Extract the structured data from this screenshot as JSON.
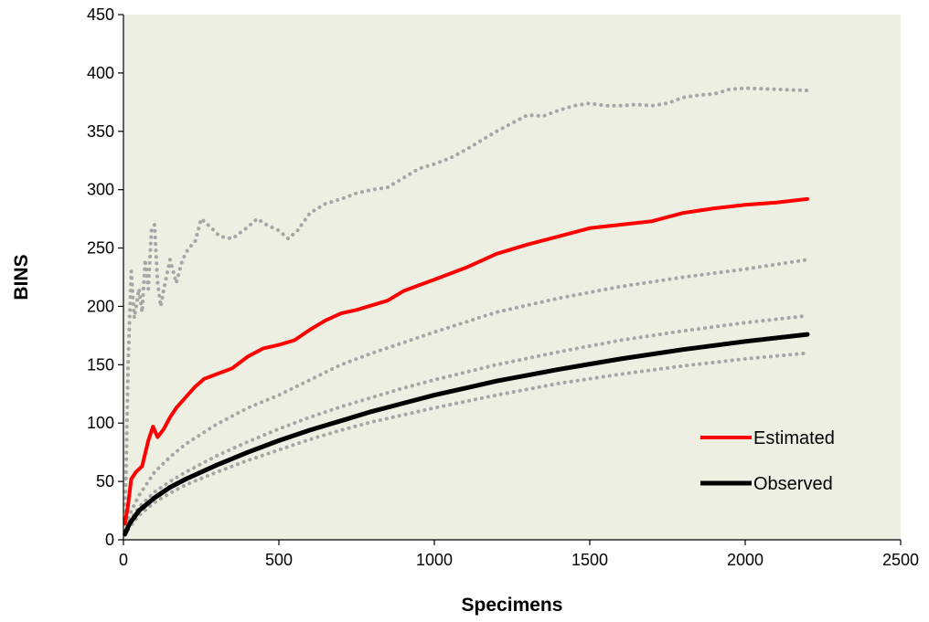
{
  "chart_data": {
    "type": "line",
    "title": "",
    "xlabel": "Specimens",
    "ylabel": "BINS",
    "xlim": [
      0,
      2500
    ],
    "ylim": [
      0,
      450
    ],
    "x_ticks": [
      0,
      500,
      1000,
      1500,
      2000,
      2500
    ],
    "y_ticks": [
      0,
      50,
      100,
      150,
      200,
      250,
      300,
      350,
      400,
      450
    ],
    "grid": false,
    "plot_background": "#ecefe2",
    "legend": {
      "placement": "bottom-right",
      "entries": [
        "Estimated",
        "Observed"
      ]
    },
    "series": [
      {
        "name": "Estimated",
        "style": "solid",
        "color": "#ff0000",
        "in_legend": true,
        "points": [
          [
            5,
            14
          ],
          [
            15,
            30
          ],
          [
            25,
            52
          ],
          [
            40,
            58
          ],
          [
            60,
            63
          ],
          [
            80,
            85
          ],
          [
            95,
            97
          ],
          [
            110,
            88
          ],
          [
            130,
            95
          ],
          [
            150,
            105
          ],
          [
            170,
            113
          ],
          [
            200,
            122
          ],
          [
            230,
            131
          ],
          [
            260,
            138
          ],
          [
            300,
            142
          ],
          [
            350,
            147
          ],
          [
            400,
            157
          ],
          [
            450,
            164
          ],
          [
            500,
            167
          ],
          [
            550,
            171
          ],
          [
            600,
            180
          ],
          [
            650,
            188
          ],
          [
            700,
            194
          ],
          [
            750,
            197
          ],
          [
            800,
            201
          ],
          [
            850,
            205
          ],
          [
            900,
            213
          ],
          [
            950,
            218
          ],
          [
            1000,
            223
          ],
          [
            1100,
            233
          ],
          [
            1200,
            245
          ],
          [
            1300,
            253
          ],
          [
            1400,
            260
          ],
          [
            1500,
            267
          ],
          [
            1600,
            270
          ],
          [
            1700,
            273
          ],
          [
            1800,
            280
          ],
          [
            1900,
            284
          ],
          [
            2000,
            287
          ],
          [
            2100,
            289
          ],
          [
            2200,
            292
          ]
        ]
      },
      {
        "name": "Observed",
        "style": "solid",
        "color": "#000000",
        "in_legend": true,
        "points": [
          [
            5,
            5
          ],
          [
            20,
            14
          ],
          [
            50,
            25
          ],
          [
            100,
            36
          ],
          [
            150,
            45
          ],
          [
            200,
            52
          ],
          [
            300,
            64
          ],
          [
            400,
            75
          ],
          [
            500,
            85
          ],
          [
            600,
            94
          ],
          [
            700,
            102
          ],
          [
            800,
            110
          ],
          [
            900,
            117
          ],
          [
            1000,
            124
          ],
          [
            1200,
            136
          ],
          [
            1400,
            146
          ],
          [
            1600,
            155
          ],
          [
            1800,
            163
          ],
          [
            2000,
            170
          ],
          [
            2200,
            176
          ]
        ]
      },
      {
        "name": "",
        "style": "dotted",
        "color": "#a6a6a6",
        "in_legend": false,
        "points": [
          [
            5,
            8
          ],
          [
            15,
            150
          ],
          [
            25,
            230
          ],
          [
            35,
            190
          ],
          [
            50,
            215
          ],
          [
            60,
            195
          ],
          [
            70,
            240
          ],
          [
            80,
            215
          ],
          [
            90,
            265
          ],
          [
            100,
            270
          ],
          [
            110,
            220
          ],
          [
            120,
            200
          ],
          [
            130,
            215
          ],
          [
            150,
            240
          ],
          [
            170,
            220
          ],
          [
            190,
            240
          ],
          [
            210,
            250
          ],
          [
            230,
            255
          ],
          [
            250,
            275
          ],
          [
            280,
            268
          ],
          [
            310,
            260
          ],
          [
            350,
            258
          ],
          [
            400,
            268
          ],
          [
            430,
            275
          ],
          [
            460,
            270
          ],
          [
            500,
            265
          ],
          [
            530,
            258
          ],
          [
            560,
            265
          ],
          [
            600,
            280
          ],
          [
            650,
            288
          ],
          [
            700,
            292
          ],
          [
            750,
            297
          ],
          [
            800,
            300
          ],
          [
            850,
            302
          ],
          [
            900,
            310
          ],
          [
            950,
            318
          ],
          [
            1000,
            322
          ],
          [
            1050,
            327
          ],
          [
            1100,
            334
          ],
          [
            1150,
            342
          ],
          [
            1200,
            350
          ],
          [
            1250,
            357
          ],
          [
            1300,
            364
          ],
          [
            1350,
            363
          ],
          [
            1400,
            368
          ],
          [
            1450,
            372
          ],
          [
            1500,
            374
          ],
          [
            1550,
            372
          ],
          [
            1600,
            372
          ],
          [
            1650,
            373
          ],
          [
            1700,
            372
          ],
          [
            1750,
            374
          ],
          [
            1800,
            379
          ],
          [
            1850,
            381
          ],
          [
            1900,
            382
          ],
          [
            1950,
            386
          ],
          [
            2000,
            387
          ],
          [
            2100,
            386
          ],
          [
            2200,
            385
          ]
        ]
      },
      {
        "name": "",
        "style": "dotted",
        "color": "#a6a6a6",
        "in_legend": false,
        "points": [
          [
            5,
            8
          ],
          [
            20,
            22
          ],
          [
            50,
            38
          ],
          [
            100,
            58
          ],
          [
            150,
            71
          ],
          [
            200,
            82
          ],
          [
            300,
            99
          ],
          [
            400,
            113
          ],
          [
            500,
            124
          ],
          [
            600,
            137
          ],
          [
            700,
            150
          ],
          [
            800,
            160
          ],
          [
            900,
            169
          ],
          [
            1000,
            178
          ],
          [
            1200,
            195
          ],
          [
            1400,
            207
          ],
          [
            1600,
            217
          ],
          [
            1800,
            225
          ],
          [
            2000,
            232
          ],
          [
            2200,
            240
          ]
        ]
      },
      {
        "name": "",
        "style": "dotted",
        "color": "#a6a6a6",
        "in_legend": false,
        "points": [
          [
            5,
            6
          ],
          [
            20,
            16
          ],
          [
            50,
            28
          ],
          [
            100,
            41
          ],
          [
            150,
            50
          ],
          [
            200,
            58
          ],
          [
            300,
            72
          ],
          [
            400,
            84
          ],
          [
            500,
            95
          ],
          [
            600,
            105
          ],
          [
            700,
            114
          ],
          [
            800,
            122
          ],
          [
            900,
            130
          ],
          [
            1000,
            137
          ],
          [
            1200,
            150
          ],
          [
            1400,
            161
          ],
          [
            1600,
            171
          ],
          [
            1800,
            179
          ],
          [
            2000,
            186
          ],
          [
            2200,
            192
          ]
        ]
      },
      {
        "name": "",
        "style": "dotted",
        "color": "#a6a6a6",
        "in_legend": false,
        "points": [
          [
            5,
            4
          ],
          [
            20,
            11
          ],
          [
            50,
            21
          ],
          [
            100,
            32
          ],
          [
            150,
            40
          ],
          [
            200,
            47
          ],
          [
            300,
            58
          ],
          [
            400,
            68
          ],
          [
            500,
            77
          ],
          [
            600,
            86
          ],
          [
            700,
            94
          ],
          [
            800,
            101
          ],
          [
            900,
            107
          ],
          [
            1000,
            113
          ],
          [
            1200,
            124
          ],
          [
            1400,
            134
          ],
          [
            1600,
            142
          ],
          [
            1800,
            149
          ],
          [
            2000,
            155
          ],
          [
            2200,
            160
          ]
        ]
      }
    ]
  }
}
